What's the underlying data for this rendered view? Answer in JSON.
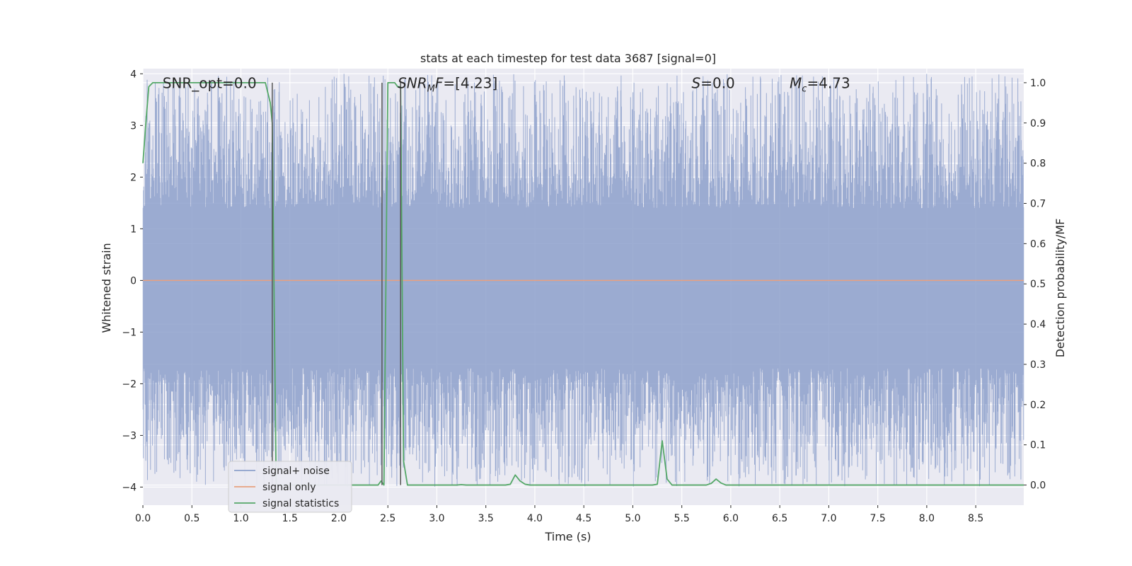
{
  "chart_data": {
    "type": "line",
    "title": "stats at each timestep for test data 3687 [signal=0]",
    "xlabel": "Time (s)",
    "ylabel": "Whitened strain",
    "y2label": "Detection probability/MF",
    "xlim": [
      0.0,
      8.99
    ],
    "ylim": [
      -4.35,
      4.1
    ],
    "y2lim": [
      -0.05,
      1.035
    ],
    "xticks": [
      0.0,
      0.5,
      1.0,
      1.5,
      2.0,
      2.5,
      3.0,
      3.5,
      4.0,
      4.5,
      5.0,
      5.5,
      6.0,
      6.5,
      7.0,
      7.5,
      8.0,
      8.5
    ],
    "xtick_labels": [
      "0.0",
      "0.5",
      "1.0",
      "1.5",
      "2.0",
      "2.5",
      "3.0",
      "3.5",
      "4.0",
      "4.5",
      "5.0",
      "5.5",
      "6.0",
      "6.5",
      "7.0",
      "7.5",
      "8.0",
      "8.5"
    ],
    "yticks": [
      -4,
      -3,
      -2,
      -1,
      0,
      1,
      2,
      3,
      4
    ],
    "ytick_labels": [
      "−4",
      "−3",
      "−2",
      "−1",
      "0",
      "1",
      "2",
      "3",
      "4"
    ],
    "y2ticks": [
      0.0,
      0.1,
      0.2,
      0.3,
      0.4,
      0.5,
      0.6,
      0.7,
      0.8,
      0.9,
      1.0
    ],
    "y2tick_labels": [
      "0.0",
      "0.1",
      "0.2",
      "0.3",
      "0.4",
      "0.5",
      "0.6",
      "0.7",
      "0.8",
      "0.9",
      "1.0"
    ],
    "grid": true,
    "legend_position": "lower-left",
    "series": [
      {
        "name": "signal+ noise",
        "axis": "left",
        "color": "#8da0cb",
        "noise_band": {
          "typical_min": -1.7,
          "typical_max": 1.4,
          "peak_min": -4.0,
          "peak_max": 4.0
        }
      },
      {
        "name": "signal only",
        "axis": "left",
        "color": "#e8a080",
        "x": [
          0.0,
          8.99
        ],
        "y": [
          0.0,
          0.0
        ]
      },
      {
        "name": "signal statistics",
        "axis": "right",
        "color": "#55a868",
        "x": [
          0.0,
          0.03,
          0.06,
          0.1,
          0.15,
          1.25,
          1.3,
          1.32,
          1.36,
          1.4,
          2.0,
          2.4,
          2.43,
          2.46,
          2.5,
          2.57,
          2.6,
          2.63,
          2.66,
          2.7,
          2.75,
          3.2,
          3.25,
          3.3,
          3.7,
          3.75,
          3.8,
          3.85,
          3.9,
          3.95,
          5.2,
          5.25,
          5.3,
          5.35,
          5.4,
          5.75,
          5.8,
          5.85,
          5.9,
          5.95,
          8.99
        ],
        "y": [
          0.8,
          0.9,
          0.99,
          1.0,
          1.0,
          1.0,
          0.95,
          0.9,
          0.0,
          0.0,
          0.0,
          0.0,
          0.01,
          0.0,
          1.0,
          1.0,
          0.99,
          0.99,
          0.06,
          0.0,
          0.0,
          0.0,
          0.001,
          0.0,
          0.0,
          0.002,
          0.025,
          0.01,
          0.002,
          0.0,
          0.0,
          0.002,
          0.11,
          0.015,
          0.0,
          0.0,
          0.004,
          0.015,
          0.005,
          0.0,
          0.0
        ]
      }
    ],
    "vertical_markers": [
      1.32,
      2.44,
      2.63
    ],
    "annotations": [
      {
        "text": "SNR_opt=0.0",
        "x": 0.2,
        "y": 3.82
      },
      {
        "text": "F=[4.23]",
        "prefix": "SNR",
        "sub": "M",
        "x": 2.6,
        "y": 3.82
      },
      {
        "text": "=0.0",
        "prefix": "S",
        "sub": "",
        "x": 5.6,
        "y": 3.82
      },
      {
        "text": "=4.73",
        "prefix": "M",
        "sub": "c",
        "x": 6.6,
        "y": 3.82
      }
    ]
  }
}
